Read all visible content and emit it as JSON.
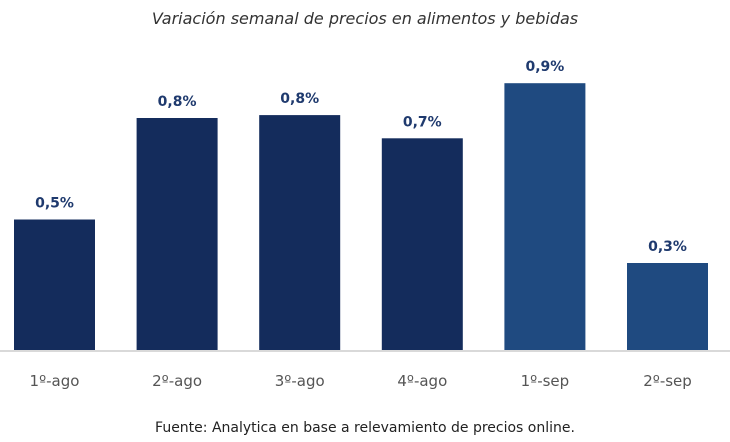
{
  "chart_data": {
    "type": "bar",
    "title": "Variación semanal de precios en alimentos y bebidas",
    "categories": [
      "1º-ago",
      "2º-ago",
      "3º-ago",
      "4º-ago",
      "1º-sep",
      "2º-sep"
    ],
    "values": [
      0.45,
      0.8,
      0.81,
      0.73,
      0.92,
      0.3
    ],
    "data_labels": [
      "0,5%",
      "0,8%",
      "0,8%",
      "0,7%",
      "0,9%",
      "0,3%"
    ],
    "bar_colors": [
      "#142c5c",
      "#142c5c",
      "#142c5c",
      "#142c5c",
      "#1f4a80",
      "#1f4a80"
    ],
    "label_color": "#1f3a6e",
    "xlabel": "",
    "ylabel": "",
    "ylim": [
      0,
      0.95
    ],
    "grid": false,
    "source": "Fuente: Analytica en base a relevamiento de precios online."
  }
}
